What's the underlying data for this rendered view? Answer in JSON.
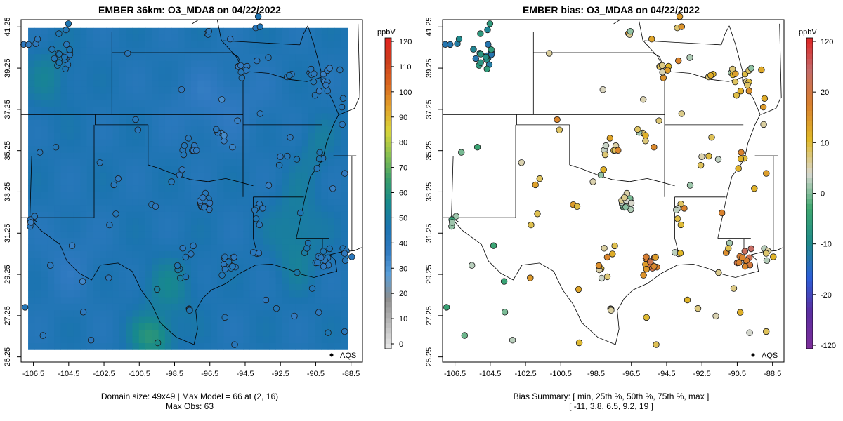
{
  "left": {
    "title": "EMBER 36km: O3_MDA8 on 04/22/2022",
    "footer_line1": "Domain size: 49x49 | Max Model = 66 at (2, 16)",
    "footer_line2": "Max Obs: 63",
    "legend_unit": "ppbV",
    "legend_ticks": [
      "0",
      "10",
      "20",
      "30",
      "40",
      "50",
      "60",
      "70",
      "80",
      "90",
      "100",
      "110",
      "120"
    ],
    "legend_colors": [
      "#e4e4e4",
      "#b8b8b8",
      "#8e8e8e",
      "#5a9ed8",
      "#2f79c0",
      "#1b74b0",
      "#178a8c",
      "#3a9d6a",
      "#88c050",
      "#d8d53a",
      "#e1a12a",
      "#d9641e",
      "#cc3b1c",
      "#e52020"
    ],
    "point_label": "AQS"
  },
  "right": {
    "title": "EMBER bias: O3_MDA8 on 04/22/2022",
    "footer_line1": "Bias Summary: [ min, 25th %, 50th %, 75th %, max ]",
    "footer_line2": "[ -11,   3.8,   6.5,   9.2,   19 ]",
    "legend_unit": "ppbV",
    "legend_ticks": [
      "120",
      "20",
      "10",
      "0",
      "-10",
      "-20",
      "-120"
    ],
    "legend_colors": [
      "#e02020",
      "#c46a6a",
      "#d9802e",
      "#e0b828",
      "#d8d8d0",
      "#3fa870",
      "#1f8a8a",
      "#2c5fd8",
      "#5b2ea0",
      "#7b2e9a"
    ],
    "point_label": "AQS"
  },
  "x_ticks": [
    "-106.5",
    "-104.5",
    "-102.5",
    "-100.5",
    "-98.5",
    "-96.5",
    "-94.5",
    "-92.5",
    "-90.5",
    "-88.5"
  ],
  "y_ticks": [
    "25.25",
    "27.25",
    "29.25",
    "31.25",
    "33.25",
    "35.25",
    "37.25",
    "39.25",
    "41.25"
  ],
  "chart_data": [
    {
      "type": "heatmap",
      "title": "EMBER 36km: O3_MDA8 on 04/22/2022",
      "variable": "O3_MDA8",
      "units": "ppbV",
      "color_range": [
        0,
        120
      ],
      "domain_size": "49x49",
      "max_model": 66,
      "max_model_cell": [
        2,
        16
      ],
      "max_obs": 63,
      "xlim": [
        -107,
        -88
      ],
      "ylim": [
        25.25,
        41.25
      ]
    },
    {
      "type": "scatter",
      "title": "EMBER bias: O3_MDA8 on 04/22/2022",
      "variable": "O3_MDA8 bias",
      "units": "ppbV",
      "bias_summary": {
        "min": -11,
        "p25": 3.8,
        "p50": 6.5,
        "p75": 9.2,
        "max": 19
      },
      "xlim": [
        -107,
        -88
      ],
      "ylim": [
        25.25,
        41.25
      ]
    }
  ]
}
